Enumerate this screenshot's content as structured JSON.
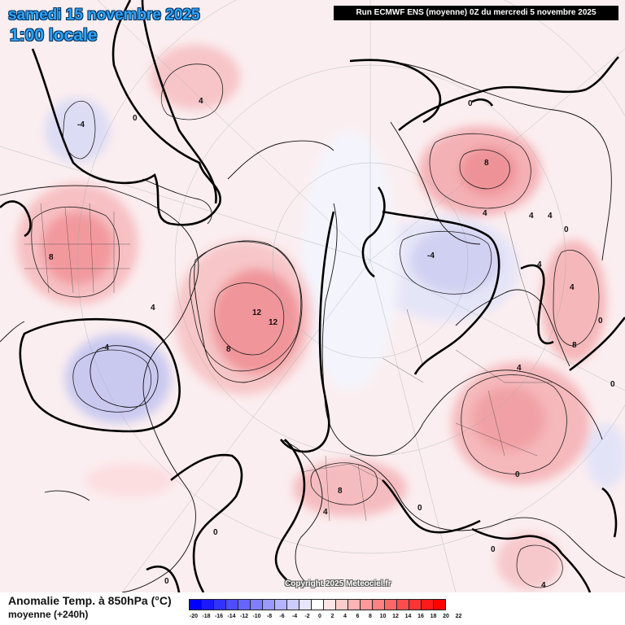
{
  "header": {
    "date": "samedi 15 novembre 2025",
    "local_time": "1:00 locale",
    "run_info": "Run ECMWF ENS (moyenne) 0Z du mercredi 5 novembre 2025"
  },
  "footer": {
    "parameter": "Anomalie Temp. à 850hPa (°C)",
    "subtitle": "moyenne  (+240h)",
    "copyright": "Copyright 2025 Meteociel.fr"
  },
  "legend": {
    "ticks": [
      "-20",
      "-18",
      "-16",
      "-14",
      "-12",
      "-10",
      "-8",
      "-6",
      "-4",
      "-2",
      "0",
      "2",
      "4",
      "6",
      "8",
      "10",
      "12",
      "14",
      "16",
      "18",
      "20",
      "22"
    ],
    "colors": [
      "#0000ff",
      "#1a1aff",
      "#3333ff",
      "#4d4dff",
      "#6666ff",
      "#8080ff",
      "#9999ff",
      "#b3b3ff",
      "#ccccff",
      "#e6e6ff",
      "#ffffff",
      "#ffe6e6",
      "#ffcccc",
      "#ffb3b3",
      "#ff9999",
      "#ff8080",
      "#ff6666",
      "#ff4d4d",
      "#ff3333",
      "#ff1a1a",
      "#ff0000"
    ]
  },
  "contour_labels": [
    "0",
    "4",
    "-4",
    "8",
    "12",
    "12",
    "8",
    "-4",
    "-4",
    "0",
    "8",
    "4",
    "4",
    "4",
    "4",
    "4",
    "8",
    "0",
    "0",
    "4",
    "8",
    "0",
    "0",
    "4",
    "0",
    "4",
    "0",
    "4",
    "0",
    "0"
  ]
}
